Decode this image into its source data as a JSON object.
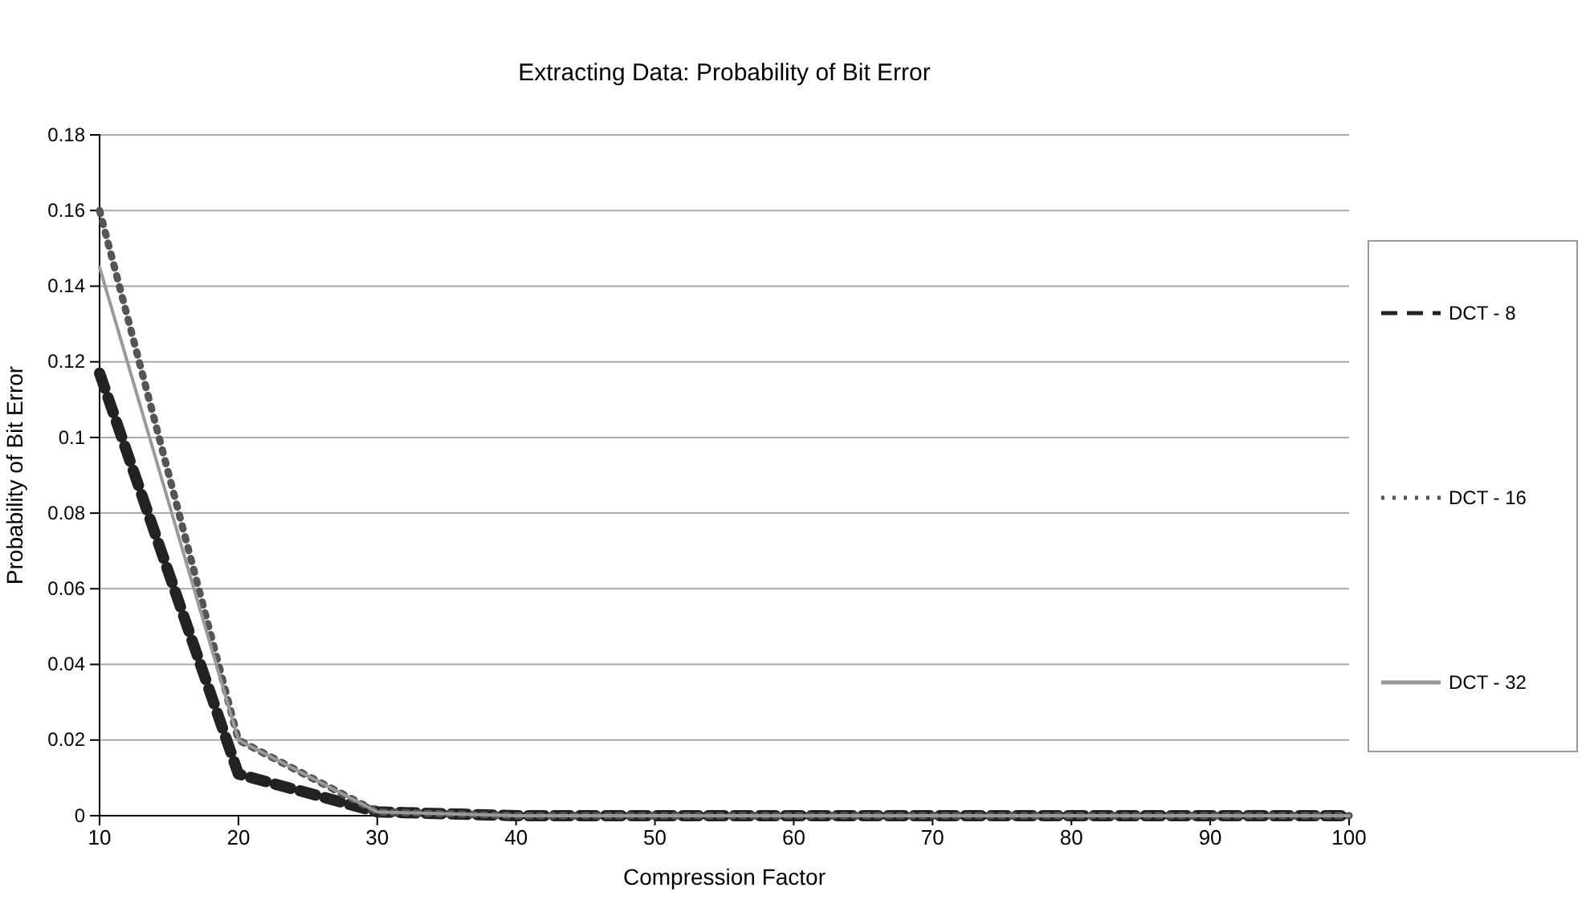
{
  "chart_data": {
    "type": "line",
    "title": "Extracting Data: Probability of Bit Error",
    "xlabel": "Compression Factor",
    "ylabel": "Probability of Bit Error",
    "x": [
      10,
      20,
      30,
      40,
      50,
      60,
      70,
      80,
      90,
      100
    ],
    "series": [
      {
        "name": "DCT - 8",
        "color": "#222222",
        "line_style": "dashed",
        "values": [
          0.117,
          0.011,
          0.001,
          0,
          0,
          0,
          0,
          0,
          0,
          0
        ]
      },
      {
        "name": "DCT - 16",
        "color": "#555555",
        "line_style": "dotted",
        "values": [
          0.16,
          0.02,
          0.001,
          0,
          0,
          0,
          0,
          0,
          0,
          0
        ]
      },
      {
        "name": "DCT - 32",
        "color": "#999999",
        "line_style": "solid",
        "values": [
          0.145,
          0.02,
          0.001,
          0,
          0,
          0,
          0,
          0,
          0,
          0
        ]
      }
    ],
    "xlim": [
      10,
      100
    ],
    "xticks": [
      10,
      20,
      30,
      40,
      50,
      60,
      70,
      80,
      90,
      100
    ],
    "ylim": [
      0,
      0.18
    ],
    "yticks": [
      0,
      0.02,
      0.04,
      0.06,
      0.08,
      0.1,
      0.12,
      0.14,
      0.16,
      0.18
    ],
    "grid": "y",
    "legend": "right",
    "marker": "none"
  }
}
